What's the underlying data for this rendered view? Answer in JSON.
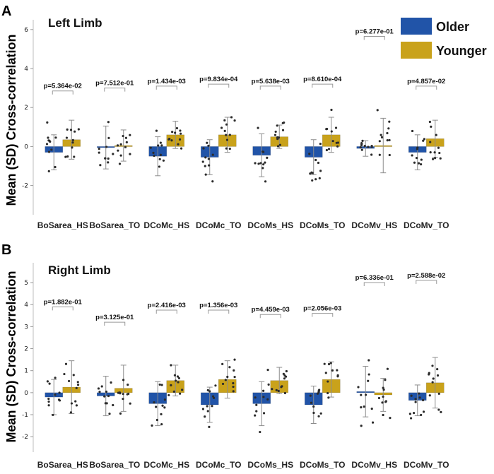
{
  "legend": {
    "older": {
      "label": "Older",
      "color": "#2154a8"
    },
    "younger": {
      "label": "Younger",
      "color": "#c9a21b"
    }
  },
  "chart_data": [
    {
      "type": "bar",
      "panel": "A",
      "title": "Left Limb",
      "ylabel": "Mean (SD) Cross-correlation",
      "xlabel": "",
      "ylim": [
        -3.5,
        6.5
      ],
      "yticks": [
        "6",
        "4",
        "2",
        "0",
        "-2"
      ],
      "ytick_values": [
        6,
        4,
        2,
        0,
        -2
      ],
      "categories": [
        "BoSarea_HS",
        "BoSarea_TO",
        "DCoMc_HS",
        "DCoMc_TO",
        "DCoMs_HS",
        "DCoMs_TO",
        "DCoMv_HS",
        "DCoMv_TO"
      ],
      "series": [
        {
          "name": "Older",
          "values": [
            -0.3,
            -0.05,
            -0.5,
            -0.55,
            -0.45,
            -0.55,
            -0.1,
            -0.3
          ],
          "sd": [
            0.9,
            1.1,
            1.0,
            0.9,
            1.1,
            0.9,
            0.4,
            0.9
          ]
        },
        {
          "name": "Younger",
          "values": [
            0.35,
            0.05,
            0.6,
            0.6,
            0.5,
            0.6,
            0.05,
            0.4
          ],
          "sd": [
            1.0,
            0.8,
            0.7,
            0.9,
            0.6,
            0.9,
            1.4,
            0.95
          ]
        }
      ],
      "pvalues": [
        "p=5.364e-02",
        "p=7.512e-01",
        "p=1.434e-03",
        "p=9.834e-04",
        "p=5.638e-03",
        "p=8.610e-04",
        "p=6.277e-01",
        "p=4.857e-02"
      ],
      "pvalue_heights": [
        2.85,
        3.0,
        3.1,
        3.2,
        3.1,
        3.2,
        5.65,
        3.1
      ]
    },
    {
      "type": "bar",
      "panel": "B",
      "title": "Right Limb",
      "ylabel": "Mean (SD) Cross-correlation",
      "xlabel": "",
      "ylim": [
        -2.7,
        5.9
      ],
      "yticks": [
        "5",
        "4",
        "3",
        "2",
        "1",
        "0",
        "-1",
        "-2"
      ],
      "ytick_values": [
        5,
        4,
        3,
        2,
        1,
        0,
        -1,
        -2
      ],
      "categories": [
        "BoSarea_HS",
        "BoSarea_TO",
        "DCoMc_HS",
        "DCoMc_TO",
        "DCoMs_HS",
        "DCoMs_TO",
        "DCoMv_HS",
        "DCoMv_TO"
      ],
      "series": [
        {
          "name": "Older",
          "values": [
            -0.2,
            -0.15,
            -0.5,
            -0.55,
            -0.5,
            -0.55,
            0.05,
            -0.35
          ],
          "sd": [
            0.8,
            0.9,
            1.0,
            0.8,
            1.0,
            0.85,
            1.15,
            0.7
          ]
        },
        {
          "name": "Younger",
          "values": [
            0.25,
            0.2,
            0.55,
            0.6,
            0.55,
            0.6,
            -0.1,
            0.45
          ],
          "sd": [
            1.2,
            1.05,
            0.7,
            0.85,
            0.6,
            0.8,
            0.75,
            1.15
          ]
        }
      ],
      "pvalues": [
        "p=1.882e-01",
        "p=3.125e-01",
        "p=2.416e-03",
        "p=1.356e-03",
        "p=4.459e-03",
        "p=2.056e-03",
        "p=6.336e-01",
        "p=2.588e-02"
      ],
      "pvalue_heights": [
        3.9,
        3.2,
        3.75,
        3.75,
        3.55,
        3.6,
        5.0,
        5.1
      ]
    }
  ]
}
